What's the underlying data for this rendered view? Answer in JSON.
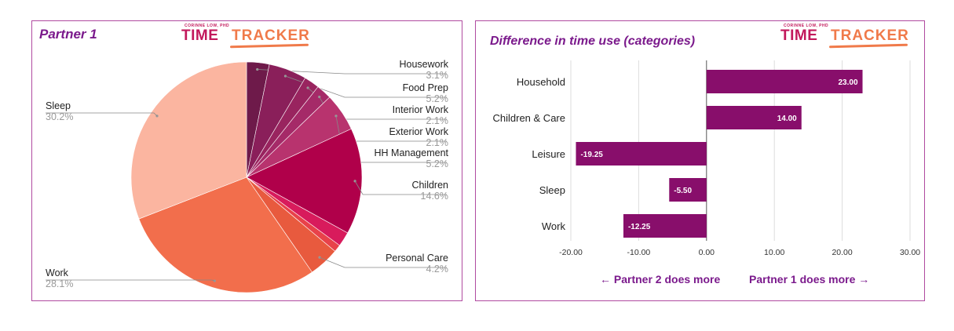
{
  "brand": {
    "subtitle": "CORINNE LOW, PHD",
    "word1": "TIME",
    "word2": "TRACKER"
  },
  "chart_data": [
    {
      "type": "pie",
      "title": "Partner 1",
      "slices": [
        {
          "label": "Housework",
          "pct": "3.1%",
          "value": 3.1,
          "color": "#6e1a4a"
        },
        {
          "label": "Food Prep",
          "pct": "5.2%",
          "value": 5.2,
          "color": "#8a1f5a"
        },
        {
          "label": "Interior Work",
          "pct": "2.1%",
          "value": 2.1,
          "color": "#99245f"
        },
        {
          "label": "Exterior Work",
          "pct": "2.1%",
          "value": 2.1,
          "color": "#a52a68"
        },
        {
          "label": "HH Management",
          "pct": "5.2%",
          "value": 5.2,
          "color": "#b8336e"
        },
        {
          "label": "Children",
          "pct": "14.6%",
          "value": 14.6,
          "color": "#b0004a"
        },
        {
          "label": "",
          "pct": "",
          "value": 2.0,
          "color": "#d81b5c"
        },
        {
          "label": "",
          "pct": "",
          "value": 1.0,
          "color": "#e8424a"
        },
        {
          "label": "Personal Care",
          "pct": "4.2%",
          "value": 4.2,
          "color": "#e85a3e"
        },
        {
          "label": "Work",
          "pct": "28.1%",
          "value": 28.1,
          "color": "#f26e4c"
        },
        {
          "label": "Sleep",
          "pct": "30.2%",
          "value": 30.2,
          "color": "#fbb5a0"
        }
      ]
    },
    {
      "type": "bar",
      "orientation": "horizontal",
      "title": "Difference in time use (categories)",
      "categories": [
        "Household",
        "Children & Care",
        "Leisure",
        "Sleep",
        "Work"
      ],
      "values": [
        23.0,
        14.0,
        -19.25,
        -5.5,
        -12.25
      ],
      "value_labels": [
        "23.00",
        "14.00",
        "-19.25",
        "-5.50",
        "-12.25"
      ],
      "xlim": [
        -20,
        30
      ],
      "ticks": [
        "-20.00",
        "-10.00",
        "0.00",
        "10.00",
        "20.00",
        "30.00"
      ],
      "tick_values": [
        -20,
        -10,
        0,
        10,
        20,
        30
      ],
      "bar_color": "#880e6b",
      "annotation_left": "← Partner 2 does more",
      "annotation_right": "Partner 1 does more →"
    }
  ]
}
